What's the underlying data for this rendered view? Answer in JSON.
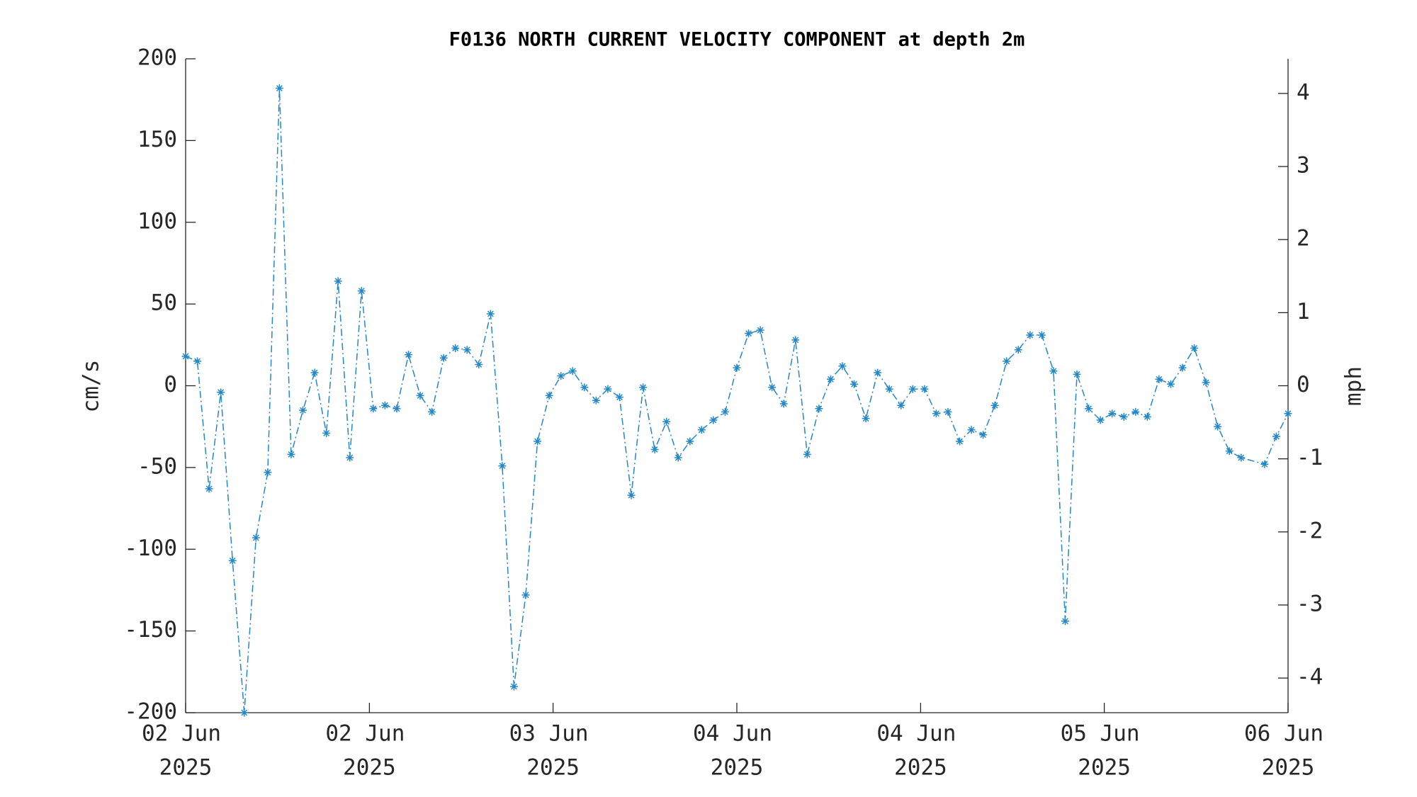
{
  "chart_data": {
    "type": "line",
    "title": "F0136 NORTH CURRENT VELOCITY COMPONENT at depth 2m",
    "ylabel": "cm/s",
    "y2label": "mph",
    "x": [
      0,
      1,
      2,
      3,
      4,
      5,
      6,
      7,
      8,
      9,
      10,
      11,
      12,
      13,
      14,
      15,
      16,
      17,
      18,
      19,
      20,
      21,
      22,
      23,
      24,
      25,
      26,
      27,
      28,
      29,
      30,
      31,
      32,
      33,
      34,
      35,
      36,
      37,
      38,
      39,
      40,
      41,
      42,
      43,
      44,
      45,
      46,
      47,
      48,
      49,
      50,
      51,
      52,
      53,
      54,
      55,
      56,
      57,
      58,
      59,
      60,
      61,
      62,
      63,
      64,
      65,
      66,
      67,
      68,
      69,
      70,
      71,
      72,
      73,
      74,
      75,
      76,
      77,
      78,
      79,
      80,
      81,
      82,
      83,
      84,
      85,
      86,
      87,
      88,
      89,
      90,
      92,
      93,
      94
    ],
    "series": [
      {
        "name": "cm/s",
        "color": "#2387c8",
        "values": [
          18,
          15,
          -63,
          -4,
          -107,
          -200,
          -93,
          -53,
          182,
          -42,
          -15,
          8,
          -29,
          64,
          -44,
          58,
          -14,
          -12,
          -14,
          19,
          -6,
          -16,
          17,
          23,
          22,
          13,
          44,
          -49,
          -184,
          -128,
          -34,
          -6,
          6,
          9,
          -1,
          -9,
          -2,
          -7,
          -67,
          -1,
          -39,
          -22,
          -44,
          -34,
          -27,
          -21,
          -16,
          11,
          32,
          34,
          -1,
          -11,
          28,
          -42,
          -14,
          4,
          12,
          1,
          -20,
          8,
          -2,
          -12,
          -2,
          -2,
          -17,
          -16,
          -34,
          -27,
          -30,
          -12,
          15,
          22,
          31,
          31,
          9,
          -144,
          7,
          -14,
          -21,
          -17,
          -19,
          -16,
          -19,
          4,
          1,
          11,
          23,
          2,
          -25,
          -40,
          -44,
          -48,
          -31,
          -17
        ]
      }
    ],
    "xlim": [
      0,
      94
    ],
    "xticks": [
      {
        "value": 0,
        "label": [
          "02 Jun",
          "2025"
        ]
      },
      {
        "value": 15.67,
        "label": [
          "02 Jun",
          "2025"
        ]
      },
      {
        "value": 31.33,
        "label": [
          "03 Jun",
          "2025"
        ]
      },
      {
        "value": 47,
        "label": [
          "04 Jun",
          "2025"
        ]
      },
      {
        "value": 62.67,
        "label": [
          "04 Jun",
          "2025"
        ]
      },
      {
        "value": 78.33,
        "label": [
          "05 Jun",
          "2025"
        ]
      },
      {
        "value": 94,
        "label": [
          "06 Jun",
          "2025"
        ]
      }
    ],
    "ylim": [
      -200,
      200
    ],
    "yticks": [
      -200,
      -150,
      -100,
      -50,
      0,
      50,
      100,
      150,
      200
    ],
    "y2lim": [
      -4.474,
      4.474
    ],
    "y2ticks": [
      -4,
      -3,
      -2,
      -1,
      0,
      1,
      2,
      3,
      4
    ]
  }
}
